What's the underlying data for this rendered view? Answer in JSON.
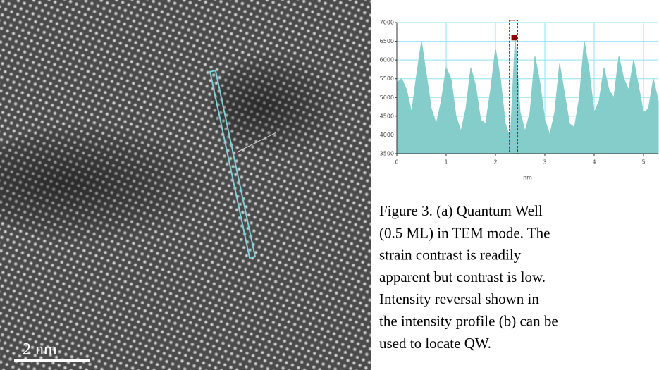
{
  "image": {
    "scale_bar_label": "2 nm"
  },
  "chart_data": {
    "type": "area",
    "xlabel": "nm",
    "color": "#84cdca",
    "grid": true,
    "x": [
      0,
      0.1,
      0.2,
      0.3,
      0.4,
      0.5,
      0.6,
      0.7,
      0.8,
      0.9,
      1.0,
      1.1,
      1.2,
      1.3,
      1.4,
      1.5,
      1.6,
      1.7,
      1.8,
      1.9,
      2.0,
      2.1,
      2.2,
      2.3,
      2.4,
      2.5,
      2.6,
      2.7,
      2.8,
      2.9,
      3.0,
      3.1,
      3.2,
      3.3,
      3.4,
      3.5,
      3.6,
      3.7,
      3.8,
      3.9,
      4.0,
      4.1,
      4.2,
      4.3,
      4.4,
      4.5,
      4.6,
      4.7,
      4.8,
      4.9,
      5.0,
      5.1,
      5.2,
      5.3
    ],
    "values": [
      5400,
      5500,
      5200,
      4600,
      5600,
      6500,
      5600,
      4700,
      4300,
      4900,
      5800,
      5500,
      4500,
      4100,
      4700,
      5800,
      5300,
      4400,
      4300,
      5200,
      6300,
      5500,
      4300,
      3900,
      6600,
      4600,
      4100,
      4600,
      6100,
      5400,
      4400,
      4000,
      4600,
      5900,
      5100,
      4300,
      4200,
      5000,
      6500,
      5700,
      4600,
      4900,
      5800,
      5200,
      5000,
      6100,
      5500,
      5200,
      6000,
      5300,
      4600,
      4700,
      5500,
      4900
    ],
    "xlim": [
      0,
      5.3
    ],
    "ylim": [
      3500,
      7000
    ],
    "xticks": [
      0,
      1,
      2,
      3,
      4,
      5
    ],
    "yticks": [
      3500,
      4000,
      4500,
      5000,
      5500,
      6000,
      6500,
      7000
    ],
    "highlight": {
      "x": 2.38,
      "value": 6600
    },
    "highlight_range": [
      2.28,
      2.45
    ]
  },
  "caption": {
    "lines": [
      "Figure 3. (a) Quantum Well",
      "(0.5 ML) in TEM mode. The",
      "strain contrast is readily",
      "apparent but contrast is low.",
      "Intensity reversal shown in",
      "the intensity profile (b) can be",
      "used to locate QW."
    ]
  }
}
